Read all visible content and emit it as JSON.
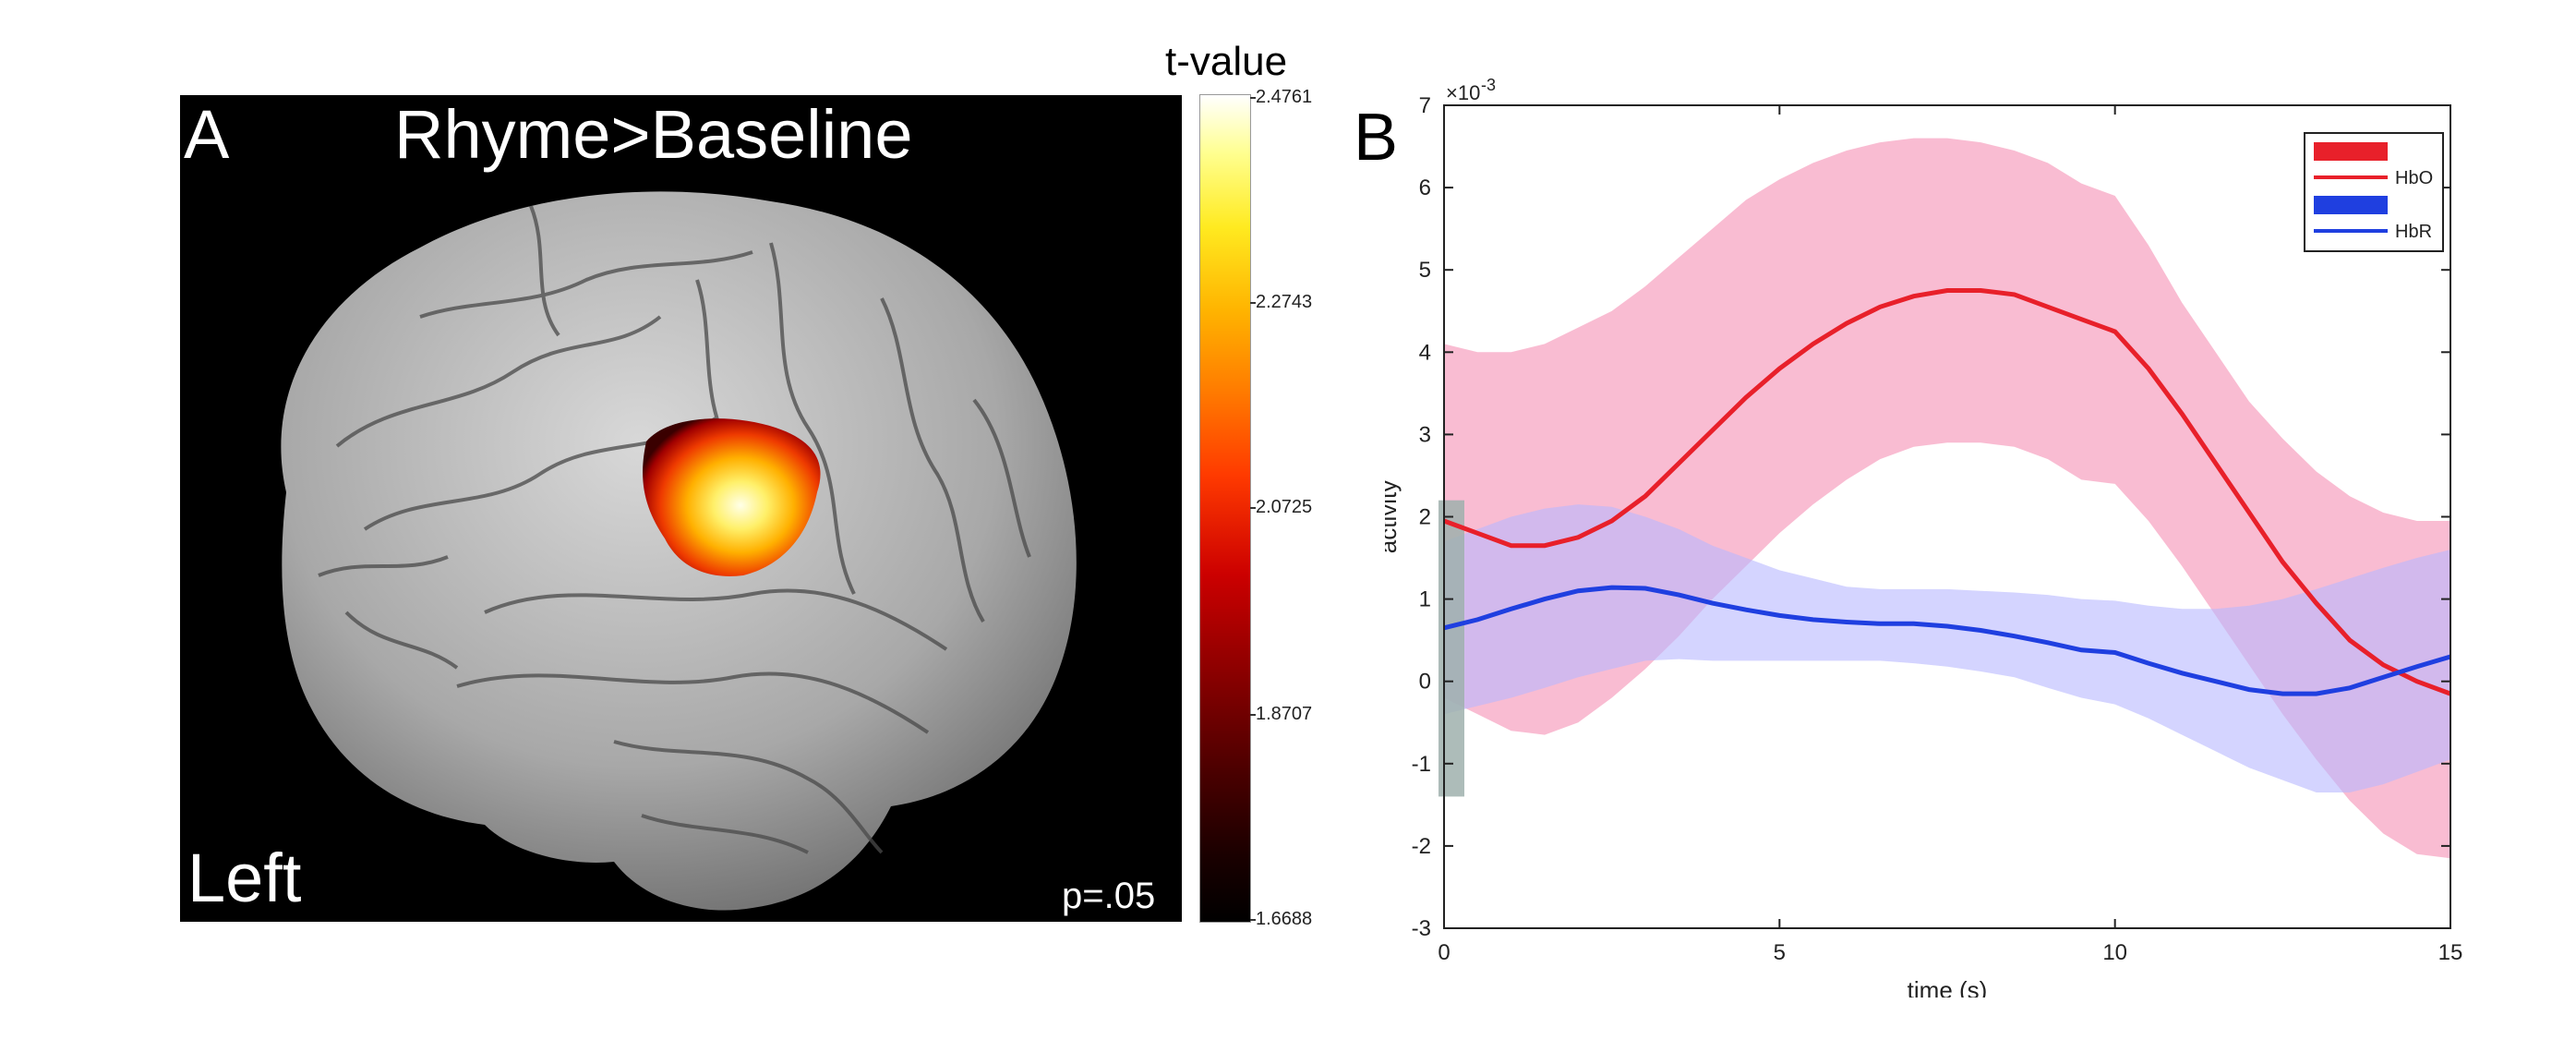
{
  "panel_a": {
    "letter": "A",
    "title": "Rhyme>Baseline",
    "hemisphere_label": "Left",
    "p_label": "p=.05",
    "colorbar": {
      "title": "t-value",
      "ticks": [
        "2.4761",
        "2.2743",
        "2.0725",
        "1.8707",
        "1.6688"
      ]
    }
  },
  "panel_b": {
    "letter": "B"
  },
  "chart_data": {
    "type": "line",
    "xlabel": "time (s)",
    "ylabel": "activity",
    "exponent_label": "×10",
    "exponent_power": "-3",
    "xlim": [
      0,
      15
    ],
    "ylim": [
      -3,
      7
    ],
    "xticks": [
      "0",
      "5",
      "10",
      "15"
    ],
    "yticks": [
      "-3",
      "-2",
      "-1",
      "0",
      "1",
      "2",
      "3",
      "4",
      "5",
      "6",
      "7"
    ],
    "legend_position": "top-right",
    "grey_bar": {
      "x": 0,
      "y_min": -1.4,
      "y_max": 2.2,
      "color": "#9fb0ad"
    },
    "series": [
      {
        "name": "HbO",
        "line_color": "#e8202a",
        "band_color": "#f7a6c3",
        "x": [
          0,
          0.5,
          1,
          1.5,
          2,
          2.5,
          3,
          3.5,
          4,
          4.5,
          5,
          5.5,
          6,
          6.5,
          7,
          7.5,
          8,
          8.5,
          9,
          9.5,
          10,
          10.5,
          11,
          11.5,
          12,
          12.5,
          13,
          13.5,
          14,
          14.5,
          15
        ],
        "values": [
          1.95,
          1.8,
          1.65,
          1.65,
          1.75,
          1.95,
          2.25,
          2.65,
          3.05,
          3.45,
          3.8,
          4.1,
          4.35,
          4.55,
          4.68,
          4.75,
          4.75,
          4.7,
          4.55,
          4.4,
          4.25,
          3.8,
          3.25,
          2.65,
          2.05,
          1.45,
          0.95,
          0.5,
          0.2,
          -0.0,
          -0.15
        ],
        "upper": [
          4.1,
          4.0,
          4.0,
          4.1,
          4.3,
          4.5,
          4.8,
          5.15,
          5.5,
          5.85,
          6.1,
          6.3,
          6.45,
          6.55,
          6.6,
          6.6,
          6.55,
          6.45,
          6.3,
          6.05,
          5.9,
          5.3,
          4.6,
          4.0,
          3.4,
          2.95,
          2.55,
          2.25,
          2.05,
          1.95,
          1.95
        ],
        "lower": [
          -0.2,
          -0.4,
          -0.6,
          -0.65,
          -0.5,
          -0.2,
          0.15,
          0.55,
          1.0,
          1.4,
          1.8,
          2.15,
          2.45,
          2.7,
          2.85,
          2.9,
          2.9,
          2.85,
          2.7,
          2.45,
          2.4,
          1.95,
          1.4,
          0.8,
          0.2,
          -0.4,
          -0.95,
          -1.45,
          -1.85,
          -2.1,
          -2.15
        ]
      },
      {
        "name": "HbR",
        "line_color": "#1f3fe0",
        "band_color": "#b8b8ff",
        "x": [
          0,
          0.5,
          1,
          1.5,
          2,
          2.5,
          3,
          3.5,
          4,
          4.5,
          5,
          5.5,
          6,
          6.5,
          7,
          7.5,
          8,
          8.5,
          9,
          9.5,
          10,
          10.5,
          11,
          11.5,
          12,
          12.5,
          13,
          13.5,
          14,
          14.5,
          15
        ],
        "values": [
          0.65,
          0.75,
          0.88,
          1.0,
          1.1,
          1.14,
          1.13,
          1.05,
          0.95,
          0.87,
          0.8,
          0.75,
          0.72,
          0.7,
          0.7,
          0.67,
          0.62,
          0.55,
          0.47,
          0.38,
          0.35,
          0.22,
          0.1,
          0.0,
          -0.1,
          -0.15,
          -0.15,
          -0.08,
          0.05,
          0.18,
          0.3
        ],
        "upper": [
          1.7,
          1.85,
          2.0,
          2.1,
          2.15,
          2.12,
          2.0,
          1.85,
          1.65,
          1.5,
          1.35,
          1.25,
          1.15,
          1.12,
          1.12,
          1.12,
          1.1,
          1.08,
          1.05,
          1.0,
          0.98,
          0.92,
          0.88,
          0.88,
          0.92,
          1.0,
          1.12,
          1.25,
          1.38,
          1.5,
          1.6
        ],
        "lower": [
          -0.4,
          -0.3,
          -0.2,
          -0.08,
          0.05,
          0.15,
          0.25,
          0.27,
          0.25,
          0.25,
          0.25,
          0.25,
          0.25,
          0.25,
          0.22,
          0.18,
          0.12,
          0.05,
          -0.08,
          -0.2,
          -0.28,
          -0.45,
          -0.65,
          -0.85,
          -1.05,
          -1.2,
          -1.35,
          -1.35,
          -1.25,
          -1.1,
          -0.95
        ]
      }
    ]
  }
}
